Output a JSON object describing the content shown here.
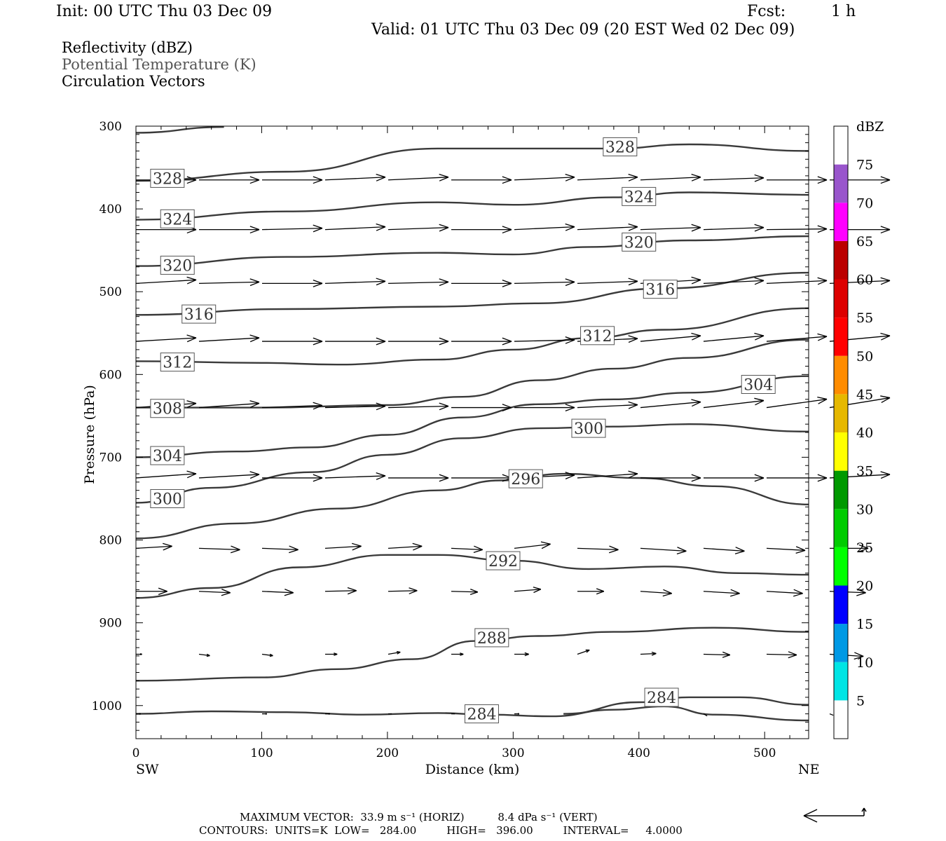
{
  "header": {
    "init": "Init: 00 UTC Thu 03 Dec 09",
    "fcst_label": "Fcst:",
    "fcst_value": "1 h",
    "valid": "Valid: 01 UTC Thu 03 Dec 09 (20 EST Wed 02 Dec 09)"
  },
  "fields": {
    "reflectivity": "Reflectivity (dBZ)",
    "theta": "Potential Temperature (K)",
    "vectors": "Circulation Vectors"
  },
  "footer": {
    "max_vector": "MAXIMUM VECTOR:  33.9 m s⁻¹ (HORIZ)          8.4 dPa s⁻¹ (VERT)",
    "contours": "CONTOURS:  UNITS=K  LOW=   284.00         HIGH=   396.00         INTERVAL=     4.0000"
  },
  "colors": {
    "contour": "#3a3a3a",
    "vector": "#000000",
    "frame": "#000000"
  },
  "chart_data": {
    "type": "line",
    "xlabel": "Distance (km)",
    "ylabel": "Pressure (hPa)",
    "xlim": [
      0,
      535
    ],
    "ylim": [
      1040,
      300
    ],
    "x_ticks": [
      0,
      100,
      200,
      300,
      400,
      500
    ],
    "y_ticks": [
      300,
      400,
      500,
      600,
      700,
      800,
      900,
      1000
    ],
    "x_end_labels": {
      "left": "SW",
      "right": "NE"
    },
    "colorbar": {
      "title": "dBZ",
      "levels": [
        5,
        10,
        15,
        20,
        25,
        30,
        35,
        40,
        45,
        50,
        55,
        60,
        65,
        70,
        75
      ],
      "colors": [
        "#ffffff",
        "#00e5e5",
        "#0099e5",
        "#0000ff",
        "#00ff00",
        "#00cc00",
        "#009900",
        "#ffff00",
        "#e6b800",
        "#ff8c00",
        "#ff0000",
        "#dd0000",
        "#bb0000",
        "#ff00ff",
        "#9955cc",
        "#ffffff"
      ]
    },
    "series": [
      {
        "contour": "328",
        "x": [
          0,
          120,
          240,
          380,
          440,
          535
        ],
        "y": [
          366,
          355,
          327,
          327,
          322,
          330
        ],
        "labels": [
          {
            "text": "328",
            "x": 25,
            "y": 363
          },
          {
            "text": "328",
            "x": 385,
            "y": 325
          }
        ]
      },
      {
        "contour": "324",
        "x": [
          0,
          120,
          240,
          300,
          380,
          440,
          535
        ],
        "y": [
          413,
          403,
          392,
          395,
          386,
          380,
          383
        ],
        "labels": [
          {
            "text": "324",
            "x": 33,
            "y": 412
          },
          {
            "text": "324",
            "x": 400,
            "y": 385
          }
        ]
      },
      {
        "contour": "320",
        "x": [
          0,
          120,
          240,
          300,
          360,
          440,
          535
        ],
        "y": [
          469,
          458,
          453,
          455,
          446,
          438,
          433
        ],
        "labels": [
          {
            "text": "320",
            "x": 33,
            "y": 468
          },
          {
            "text": "320",
            "x": 400,
            "y": 440
          }
        ]
      },
      {
        "contour": "316",
        "x": [
          0,
          120,
          240,
          320,
          420,
          535
        ],
        "y": [
          528,
          521,
          518,
          514,
          496,
          477
        ],
        "labels": [
          {
            "text": "316",
            "x": 50,
            "y": 527
          },
          {
            "text": "316",
            "x": 417,
            "y": 497
          }
        ]
      },
      {
        "contour": "312",
        "x": [
          0,
          100,
          160,
          240,
          300,
          360,
          420,
          535
        ],
        "y": [
          584,
          586,
          588,
          582,
          570,
          556,
          546,
          520
        ],
        "labels": [
          {
            "text": "312",
            "x": 33,
            "y": 585
          },
          {
            "text": "312",
            "x": 367,
            "y": 553
          }
        ]
      },
      {
        "contour": "308",
        "x": [
          0,
          100,
          200,
          260,
          320,
          380,
          440,
          535
        ],
        "y": [
          640,
          640,
          637,
          627,
          607,
          593,
          580,
          558
        ],
        "labels": [
          {
            "text": "308",
            "x": 25,
            "y": 641
          }
        ]
      },
      {
        "contour": "304",
        "x": [
          0,
          80,
          140,
          200,
          260,
          320,
          380,
          440,
          535
        ],
        "y": [
          700,
          693,
          688,
          673,
          652,
          636,
          630,
          622,
          602
        ],
        "labels": [
          {
            "text": "304",
            "x": 25,
            "y": 698
          },
          {
            "text": "304",
            "x": 495,
            "y": 612
          }
        ]
      },
      {
        "contour": "300",
        "x": [
          0,
          60,
          140,
          200,
          260,
          320,
          380,
          440,
          535
        ],
        "y": [
          755,
          737,
          718,
          697,
          677,
          665,
          663,
          660,
          669
        ],
        "labels": [
          {
            "text": "300",
            "x": 25,
            "y": 750
          },
          {
            "text": "300",
            "x": 360,
            "y": 665
          }
        ]
      },
      {
        "contour": "296",
        "x": [
          0,
          80,
          160,
          240,
          290,
          340,
          400,
          460,
          535
        ],
        "y": [
          798,
          780,
          762,
          740,
          728,
          720,
          725,
          735,
          757
        ],
        "labels": [
          {
            "text": "296",
            "x": 310,
            "y": 726
          }
        ]
      },
      {
        "contour": "292",
        "x": [
          0,
          60,
          130,
          200,
          240,
          300,
          360,
          420,
          480,
          535
        ],
        "y": [
          870,
          858,
          833,
          818,
          818,
          825,
          835,
          832,
          840,
          842
        ],
        "labels": [
          {
            "text": "292",
            "x": 292,
            "y": 825
          }
        ]
      },
      {
        "contour": "288",
        "x": [
          0,
          100,
          160,
          220,
          270,
          320,
          380,
          460,
          535
        ],
        "y": [
          970,
          966,
          956,
          944,
          922,
          916,
          911,
          906,
          911
        ],
        "labels": [
          {
            "text": "288",
            "x": 283,
            "y": 918
          }
        ]
      },
      {
        "contour": "284",
        "x": [
          0,
          60,
          120,
          180,
          240,
          280,
          330,
          380,
          420,
          460,
          535
        ],
        "y": [
          1010,
          1007,
          1008,
          1011,
          1009,
          1011,
          1013,
          1005,
          1001,
          1011,
          1018
        ],
        "labels": [
          {
            "text": "284",
            "x": 275,
            "y": 1010
          }
        ]
      },
      {
        "contour": "284",
        "x": [
          340,
          400,
          440,
          480,
          535
        ],
        "y": [
          1010,
          996,
          990,
          990,
          999
        ],
        "labels": [
          {
            "text": "284",
            "x": 418,
            "y": 990
          }
        ]
      },
      {
        "contour": "",
        "x": [
          0,
          70
        ],
        "y": [
          308,
          301
        ],
        "labels": []
      }
    ],
    "vector_rows": [
      {
        "p": 365,
        "count": 12,
        "u": [
          50,
          50,
          50,
          50,
          50,
          50,
          50,
          50,
          50,
          50,
          50,
          50
        ],
        "v": [
          0,
          0,
          0,
          4,
          4,
          0,
          4,
          4,
          4,
          3,
          0,
          0
        ]
      },
      {
        "p": 425,
        "count": 12,
        "u": [
          50,
          50,
          50,
          50,
          50,
          50,
          50,
          50,
          50,
          50,
          50,
          50
        ],
        "v": [
          0,
          0,
          2,
          4,
          3,
          0,
          4,
          4,
          3,
          3,
          1,
          0
        ]
      },
      {
        "p": 490,
        "count": 12,
        "u": [
          50,
          50,
          50,
          50,
          50,
          50,
          50,
          50,
          50,
          50,
          50,
          50
        ],
        "v": [
          5,
          2,
          0,
          3,
          2,
          0,
          2,
          3,
          5,
          4,
          4,
          4
        ]
      },
      {
        "p": 560,
        "count": 12,
        "u": [
          50,
          50,
          50,
          50,
          50,
          50,
          50,
          50,
          50,
          50,
          50,
          50
        ],
        "v": [
          5,
          5,
          0,
          0,
          0,
          0,
          2,
          4,
          8,
          8,
          7,
          8
        ]
      },
      {
        "p": 640,
        "count": 12,
        "u": [
          50,
          50,
          50,
          50,
          50,
          50,
          50,
          50,
          50,
          50,
          50,
          50
        ],
        "v": [
          6,
          6,
          3,
          2,
          2,
          0,
          0,
          4,
          8,
          10,
          12,
          14
        ]
      },
      {
        "p": 725,
        "count": 12,
        "u": [
          50,
          50,
          50,
          50,
          50,
          50,
          50,
          50,
          50,
          50,
          50,
          50
        ],
        "v": [
          6,
          5,
          0,
          3,
          0,
          0,
          4,
          6,
          0,
          0,
          0,
          5
        ]
      },
      {
        "p": 810,
        "count": 12,
        "u": [
          30,
          34,
          30,
          30,
          28,
          26,
          30,
          34,
          38,
          34,
          32,
          32
        ],
        "v": [
          3,
          -2,
          -2,
          3,
          3,
          -2,
          6,
          -2,
          -4,
          -4,
          -3,
          0
        ]
      },
      {
        "p": 862,
        "count": 12,
        "u": [
          26,
          26,
          26,
          26,
          24,
          22,
          22,
          22,
          26,
          30,
          30,
          30
        ],
        "v": [
          0,
          -2,
          -2,
          1,
          1,
          -1,
          3,
          0,
          -3,
          -3,
          -3,
          -2
        ]
      },
      {
        "p": 938,
        "count": 12,
        "u": [
          5,
          9,
          9,
          10,
          10,
          10,
          12,
          10,
          13,
          22,
          25,
          28
        ],
        "v": [
          0,
          -2,
          -2,
          0,
          3,
          0,
          0,
          6,
          1,
          -1,
          -1,
          -3
        ]
      },
      {
        "p": 1010,
        "count": 12,
        "u": [
          4,
          0,
          4,
          4,
          3,
          3,
          4,
          0,
          0,
          3,
          0,
          3
        ],
        "v": [
          0,
          0,
          0,
          0,
          0,
          0,
          0,
          0,
          0,
          -3,
          0,
          -2
        ]
      }
    ]
  }
}
